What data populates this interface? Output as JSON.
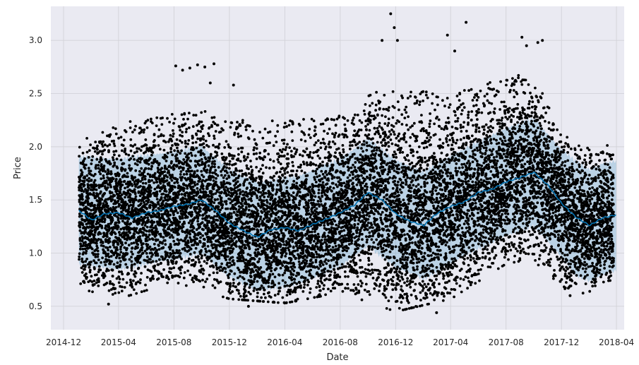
{
  "chart_data": {
    "type": "scatter",
    "title": "",
    "xlabel": "Date",
    "ylabel": "Price",
    "grid": true,
    "x_axis": {
      "type": "date",
      "range": [
        "2014-11-03",
        "2018-04-18"
      ],
      "ticks": [
        {
          "date": "2014-12-01",
          "label": "2014-12"
        },
        {
          "date": "2015-04-01",
          "label": "2015-04"
        },
        {
          "date": "2015-08-01",
          "label": "2015-08"
        },
        {
          "date": "2015-12-01",
          "label": "2015-12"
        },
        {
          "date": "2016-04-01",
          "label": "2016-04"
        },
        {
          "date": "2016-08-01",
          "label": "2016-08"
        },
        {
          "date": "2016-12-01",
          "label": "2016-12"
        },
        {
          "date": "2017-04-01",
          "label": "2017-04"
        },
        {
          "date": "2017-08-01",
          "label": "2017-08"
        },
        {
          "date": "2017-12-01",
          "label": "2017-12"
        },
        {
          "date": "2018-04-01",
          "label": "2018-04"
        }
      ]
    },
    "y_axis": {
      "range": [
        0.28,
        3.32
      ],
      "ticks": [
        {
          "value": 0.5,
          "label": "0.5"
        },
        {
          "value": 1.0,
          "label": "1.0"
        },
        {
          "value": 1.5,
          "label": "1.5"
        },
        {
          "value": 2.0,
          "label": "2.0"
        },
        {
          "value": 2.5,
          "label": "2.5"
        },
        {
          "value": 3.0,
          "label": "3.0"
        }
      ]
    },
    "observed_date_range": [
      "2015-01-04",
      "2018-03-25"
    ],
    "series": [
      {
        "name": "observed",
        "kind": "points",
        "color": "#000000",
        "note": "dense daily observations, approx. 18000 points; cloud envelope by date",
        "envelope": [
          {
            "date": "2015-01-04",
            "low": 0.72,
            "high": 2.0
          },
          {
            "date": "2015-04-01",
            "low": 0.62,
            "high": 2.15
          },
          {
            "date": "2015-08-01",
            "low": 0.78,
            "high": 2.35
          },
          {
            "date": "2015-12-01",
            "low": 0.62,
            "high": 2.25
          },
          {
            "date": "2016-04-01",
            "low": 0.58,
            "high": 2.25
          },
          {
            "date": "2016-08-01",
            "low": 0.68,
            "high": 2.3
          },
          {
            "date": "2016-12-01",
            "low": 0.5,
            "high": 2.55
          },
          {
            "date": "2017-04-01",
            "low": 0.62,
            "high": 2.5
          },
          {
            "date": "2017-08-01",
            "low": 0.95,
            "high": 2.65
          },
          {
            "date": "2017-10-01",
            "low": 1.0,
            "high": 2.7
          },
          {
            "date": "2017-12-01",
            "low": 0.62,
            "high": 2.05
          },
          {
            "date": "2018-03-25",
            "low": 0.75,
            "high": 1.95
          }
        ],
        "outliers": [
          {
            "date": "2015-08-05",
            "value": 2.76
          },
          {
            "date": "2015-08-20",
            "value": 2.72
          },
          {
            "date": "2015-09-05",
            "value": 2.74
          },
          {
            "date": "2015-09-22",
            "value": 2.77
          },
          {
            "date": "2015-10-08",
            "value": 2.75
          },
          {
            "date": "2015-10-20",
            "value": 2.6
          },
          {
            "date": "2015-10-28",
            "value": 2.78
          },
          {
            "date": "2015-12-10",
            "value": 2.58
          },
          {
            "date": "2016-11-01",
            "value": 3.0
          },
          {
            "date": "2016-11-20",
            "value": 3.25
          },
          {
            "date": "2016-11-28",
            "value": 3.12
          },
          {
            "date": "2016-12-05",
            "value": 3.0
          },
          {
            "date": "2017-03-25",
            "value": 3.05
          },
          {
            "date": "2017-04-10",
            "value": 2.9
          },
          {
            "date": "2017-05-05",
            "value": 3.17
          },
          {
            "date": "2017-09-05",
            "value": 3.03
          },
          {
            "date": "2017-09-15",
            "value": 2.95
          },
          {
            "date": "2017-10-10",
            "value": 2.98
          },
          {
            "date": "2017-10-20",
            "value": 3.0
          },
          {
            "date": "2017-12-20",
            "value": 0.6
          },
          {
            "date": "2017-03-01",
            "value": 0.44
          },
          {
            "date": "2016-01-12",
            "value": 0.5
          },
          {
            "date": "2015-03-10",
            "value": 0.52
          }
        ]
      },
      {
        "name": "yhat",
        "kind": "line",
        "color": "#0072B2",
        "values": [
          {
            "date": "2015-01-04",
            "value": 1.4
          },
          {
            "date": "2015-02-01",
            "value": 1.31
          },
          {
            "date": "2015-03-01",
            "value": 1.37
          },
          {
            "date": "2015-04-01",
            "value": 1.38
          },
          {
            "date": "2015-05-01",
            "value": 1.33
          },
          {
            "date": "2015-06-01",
            "value": 1.38
          },
          {
            "date": "2015-07-01",
            "value": 1.4
          },
          {
            "date": "2015-08-01",
            "value": 1.44
          },
          {
            "date": "2015-09-01",
            "value": 1.46
          },
          {
            "date": "2015-10-01",
            "value": 1.5
          },
          {
            "date": "2015-11-01",
            "value": 1.4
          },
          {
            "date": "2015-12-01",
            "value": 1.28
          },
          {
            "date": "2016-01-01",
            "value": 1.21
          },
          {
            "date": "2016-02-01",
            "value": 1.15
          },
          {
            "date": "2016-03-01",
            "value": 1.22
          },
          {
            "date": "2016-04-01",
            "value": 1.24
          },
          {
            "date": "2016-05-01",
            "value": 1.21
          },
          {
            "date": "2016-06-01",
            "value": 1.27
          },
          {
            "date": "2016-07-01",
            "value": 1.32
          },
          {
            "date": "2016-08-01",
            "value": 1.38
          },
          {
            "date": "2016-09-01",
            "value": 1.45
          },
          {
            "date": "2016-10-01",
            "value": 1.57
          },
          {
            "date": "2016-11-01",
            "value": 1.5
          },
          {
            "date": "2016-12-01",
            "value": 1.37
          },
          {
            "date": "2017-01-01",
            "value": 1.3
          },
          {
            "date": "2017-02-01",
            "value": 1.26
          },
          {
            "date": "2017-03-01",
            "value": 1.37
          },
          {
            "date": "2017-04-01",
            "value": 1.44
          },
          {
            "date": "2017-05-01",
            "value": 1.48
          },
          {
            "date": "2017-06-01",
            "value": 1.57
          },
          {
            "date": "2017-07-01",
            "value": 1.6
          },
          {
            "date": "2017-08-01",
            "value": 1.67
          },
          {
            "date": "2017-09-01",
            "value": 1.71
          },
          {
            "date": "2017-10-01",
            "value": 1.76
          },
          {
            "date": "2017-11-01",
            "value": 1.64
          },
          {
            "date": "2017-12-01",
            "value": 1.47
          },
          {
            "date": "2018-01-01",
            "value": 1.34
          },
          {
            "date": "2018-02-01",
            "value": 1.26
          },
          {
            "date": "2018-03-01",
            "value": 1.33
          },
          {
            "date": "2018-03-31",
            "value": 1.36
          }
        ]
      },
      {
        "name": "uncertainty_interval",
        "kind": "band",
        "color": "#0072B2",
        "opacity": 0.2,
        "values": [
          {
            "date": "2015-01-04",
            "low": 0.9,
            "high": 1.9
          },
          {
            "date": "2015-04-01",
            "low": 0.85,
            "high": 1.88
          },
          {
            "date": "2015-08-01",
            "low": 0.95,
            "high": 1.95
          },
          {
            "date": "2015-10-01",
            "low": 1.0,
            "high": 2.0
          },
          {
            "date": "2015-12-01",
            "low": 0.78,
            "high": 1.78
          },
          {
            "date": "2016-02-01",
            "low": 0.65,
            "high": 1.66
          },
          {
            "date": "2016-05-01",
            "low": 0.71,
            "high": 1.72
          },
          {
            "date": "2016-08-01",
            "low": 0.88,
            "high": 1.88
          },
          {
            "date": "2016-10-01",
            "low": 1.07,
            "high": 2.07
          },
          {
            "date": "2016-12-01",
            "low": 0.87,
            "high": 1.87
          },
          {
            "date": "2017-02-01",
            "low": 0.76,
            "high": 1.76
          },
          {
            "date": "2017-05-01",
            "low": 0.98,
            "high": 1.98
          },
          {
            "date": "2017-08-01",
            "low": 1.17,
            "high": 2.17
          },
          {
            "date": "2017-10-01",
            "low": 1.26,
            "high": 2.26
          },
          {
            "date": "2017-12-01",
            "low": 0.97,
            "high": 1.97
          },
          {
            "date": "2018-01-01",
            "low": 0.8,
            "high": 1.86
          },
          {
            "date": "2018-02-01",
            "low": 0.74,
            "high": 1.78
          },
          {
            "date": "2018-03-01",
            "low": 0.8,
            "high": 1.84
          },
          {
            "date": "2018-03-31",
            "low": 0.84,
            "high": 1.86
          }
        ]
      }
    ]
  },
  "colors": {
    "plot_background": "#EAEAF2",
    "grid": "#D2D2D8",
    "points": "#000000",
    "forecast_line": "#0072B2",
    "band": "#0072B2",
    "text": "#262626"
  }
}
